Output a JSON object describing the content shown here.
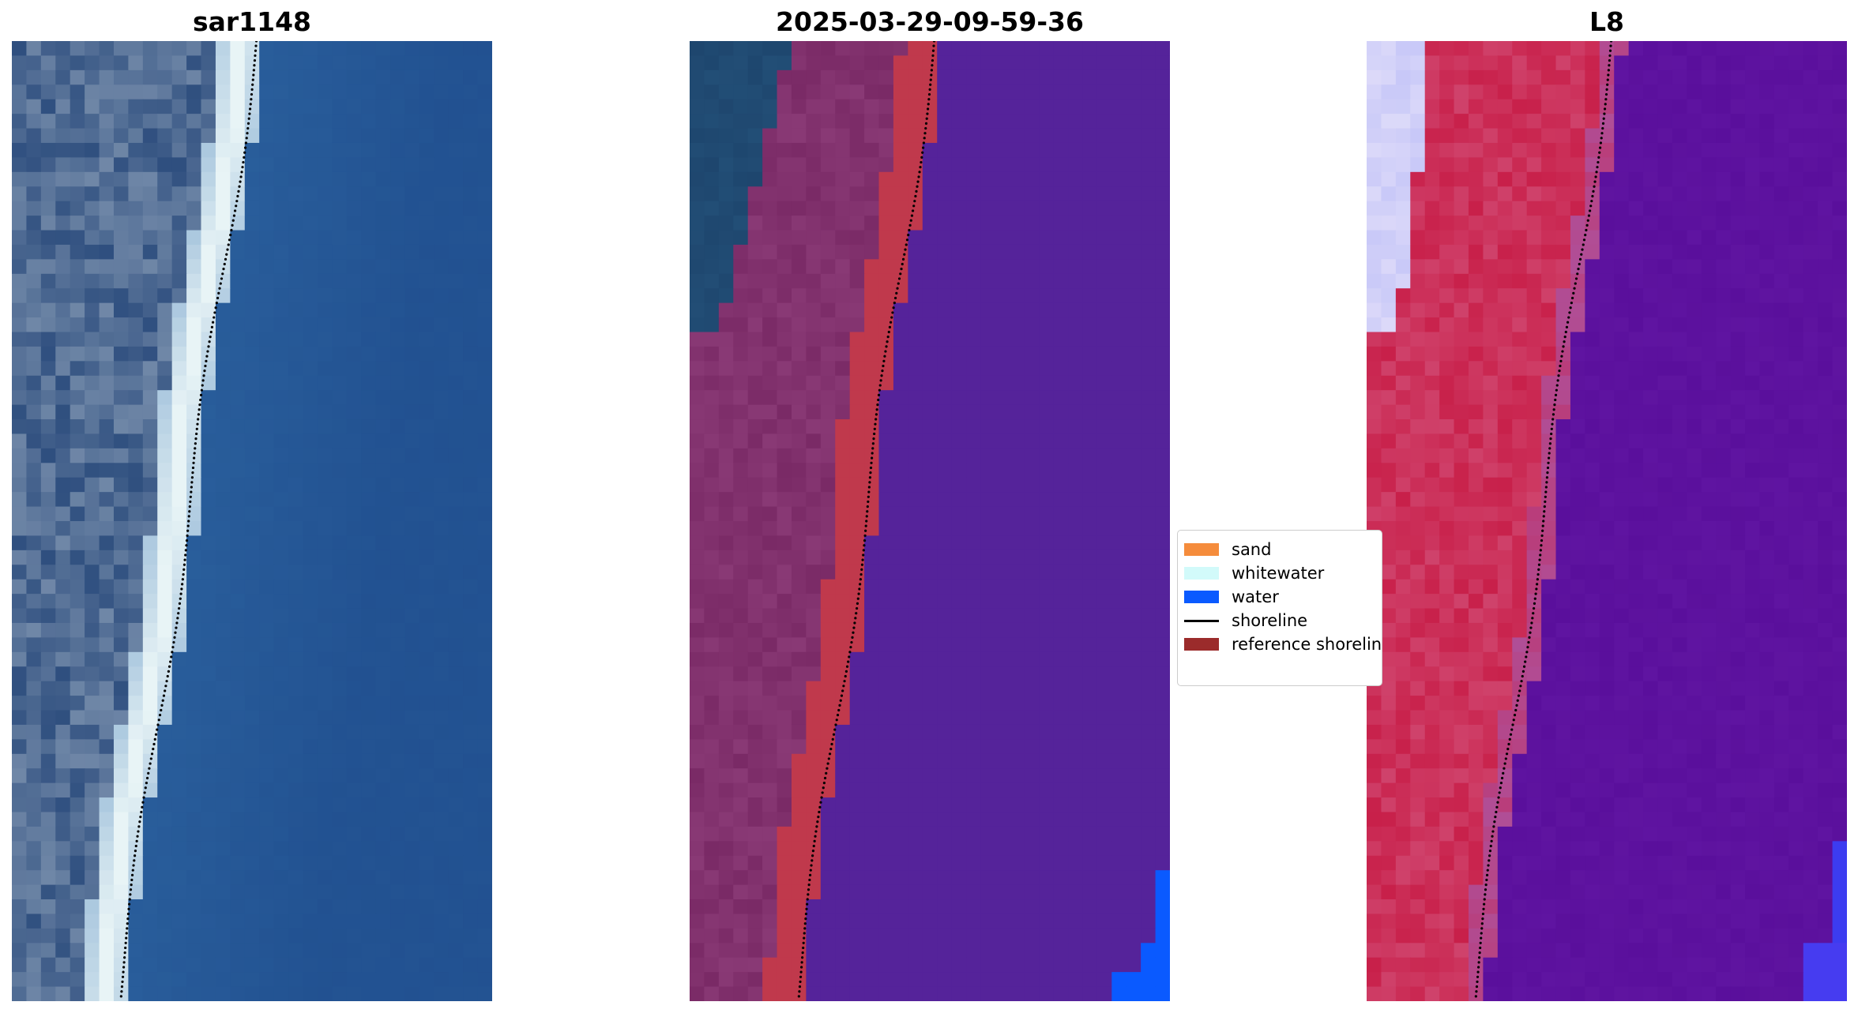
{
  "panels": [
    {
      "title": "sar1148",
      "image_kind": "rgb"
    },
    {
      "title": "2025-03-29-09-59-36",
      "image_kind": "classified"
    },
    {
      "title": "L8",
      "image_kind": "index"
    }
  ],
  "legend": {
    "entries": [
      {
        "label": "sand",
        "color": "#f58c3c",
        "kind": "patch"
      },
      {
        "label": "whitewater",
        "color": "#d2fafa",
        "kind": "patch"
      },
      {
        "label": "water",
        "color": "#0a5aff",
        "kind": "patch"
      },
      {
        "label": "shoreline",
        "color": "#000000",
        "kind": "line"
      },
      {
        "label": "reference shoreline",
        "color": "#9b2b2b",
        "kind": "patch"
      }
    ]
  },
  "colors": {
    "sar_water": "#2a5f9c",
    "sar_land": "#2f4f7f",
    "sar_beach": "#e8f4f6",
    "class_land": "#7a2a66",
    "class_sand_overlay": "#c0394c",
    "class_water": "#55239a",
    "class_water_true": "#0a5aff",
    "index_land": "#c8204a",
    "index_water": "#5a0f9c",
    "index_high": "#c8c8f8",
    "shoreline_dots": "#000000"
  }
}
